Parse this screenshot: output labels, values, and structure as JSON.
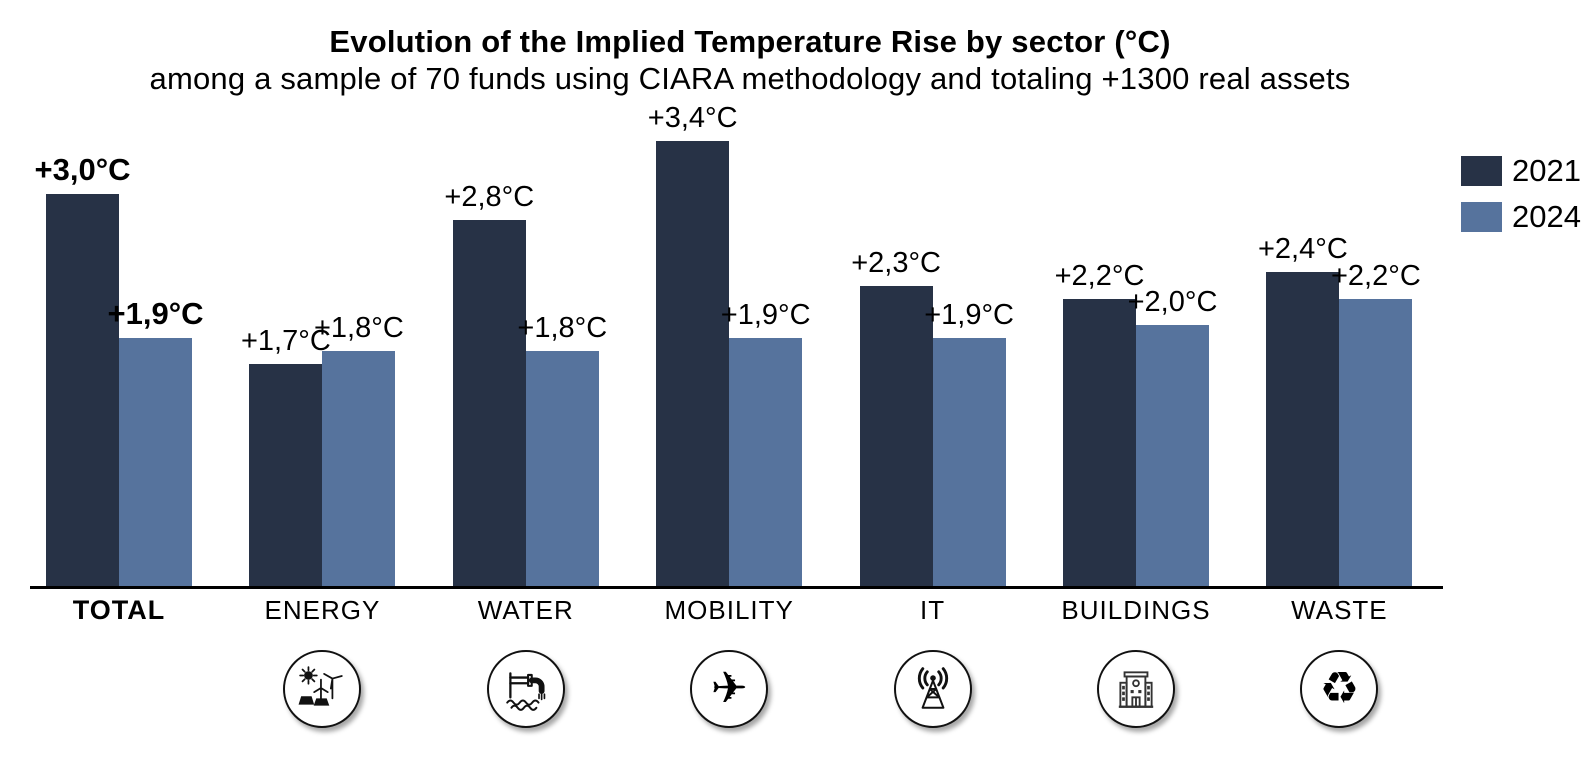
{
  "glyphs": {
    "mobility": "✈",
    "waste": "♻"
  },
  "legend": [
    {
      "label": "2021",
      "color": "#273246"
    },
    {
      "label": "2024",
      "color": "#56739D"
    }
  ],
  "chart_data": {
    "type": "bar",
    "title": "Evolution of the Implied Temperature Rise by sector (°C)",
    "subtitle": "among a sample of 70 funds using CIARA methodology and totaling +1300 real assets",
    "unit": "°C",
    "categories": [
      "TOTAL",
      "ENERGY",
      "WATER",
      "MOBILITY",
      "IT",
      "BUILDINGS",
      "WASTE"
    ],
    "series": [
      {
        "name": "2021",
        "color": "#273246",
        "values": [
          3.0,
          1.7,
          2.8,
          3.4,
          2.3,
          2.2,
          2.4
        ],
        "labels": [
          "+3,0°C",
          "+1,7°C",
          "+2,8°C",
          "+3,4°C",
          "+2,3°C",
          "+2,2°C",
          "+2,4°C"
        ]
      },
      {
        "name": "2024",
        "color": "#56739D",
        "values": [
          1.9,
          1.8,
          1.8,
          1.9,
          1.9,
          2.0,
          2.2
        ],
        "labels": [
          "+1,9°C",
          "+1,8°C",
          "+1,8°C",
          "+1,9°C",
          "+1,9°C",
          "+2,0°C",
          "+2,2°C"
        ]
      }
    ],
    "ylim": [
      0,
      3.6
    ],
    "grid": false,
    "y_axis_visible": false,
    "legend_position": "top-right",
    "value_label_style": "comma decimal, above each bar",
    "emphasized_category": "TOTAL",
    "icons": [
      null,
      "energy",
      "water",
      "mobility",
      "it",
      "buildings",
      "waste"
    ]
  }
}
